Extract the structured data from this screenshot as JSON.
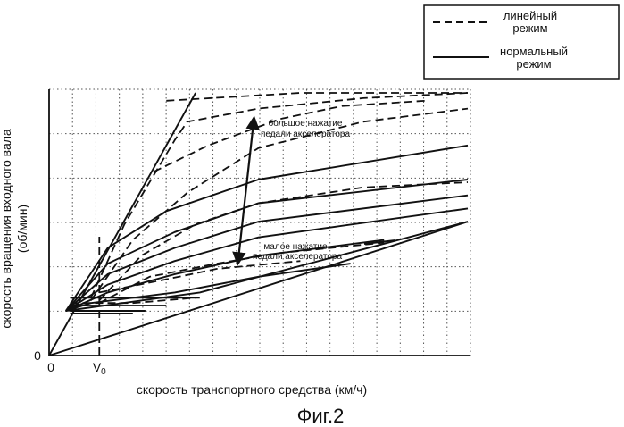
{
  "figure_caption": "Фиг.2",
  "chart_data": {
    "type": "line",
    "xlabel": "скорость транспортного средства (км/ч)",
    "ylabel_line1": "скорость вращения входного вала",
    "ylabel_line2": "(об/мин)",
    "x_origin_label": "0",
    "y_origin_label": "0",
    "v0_label": "V",
    "v0_subscript": "0",
    "v0": 0.12,
    "grid": "dotted",
    "legend_position": "top-right",
    "legend": [
      {
        "style": "dashed",
        "line1": "линейный",
        "line2": "режим"
      },
      {
        "style": "solid",
        "line1": "нормальный",
        "line2": "режим"
      }
    ],
    "annotations": {
      "high": {
        "line1": "большое нажатие",
        "line2": "педали акселератора"
      },
      "low": {
        "line1": "малое нажатие",
        "line2": "педали акселератора"
      }
    },
    "xlim": [
      0,
      1
    ],
    "ylim": [
      0,
      1
    ],
    "series": [
      {
        "style": "solid",
        "points": [
          [
            0,
            0
          ],
          [
            0.35,
            1.0
          ]
        ]
      },
      {
        "style": "solid",
        "points": [
          [
            0,
            0
          ],
          [
            1.0,
            0.51
          ]
        ]
      },
      {
        "style": "solid",
        "points": [
          [
            0.04,
            0.17
          ],
          [
            0.36,
            0.24
          ],
          [
            1.0,
            0.51
          ]
        ]
      },
      {
        "style": "solid",
        "points": [
          [
            0.04,
            0.17
          ],
          [
            0.14,
            0.41
          ],
          [
            0.28,
            0.55
          ],
          [
            0.5,
            0.67
          ],
          [
            1.0,
            0.8
          ]
        ]
      },
      {
        "style": "solid",
        "points": [
          [
            0.04,
            0.17
          ],
          [
            0.14,
            0.35
          ],
          [
            0.3,
            0.47
          ],
          [
            0.5,
            0.58
          ],
          [
            1.0,
            0.67
          ]
        ]
      },
      {
        "style": "solid",
        "points": [
          [
            0.04,
            0.17
          ],
          [
            0.14,
            0.31
          ],
          [
            0.3,
            0.41
          ],
          [
            0.5,
            0.51
          ],
          [
            1.0,
            0.61
          ]
        ]
      },
      {
        "style": "solid",
        "points": [
          [
            0.04,
            0.17
          ],
          [
            0.14,
            0.27
          ],
          [
            0.3,
            0.36
          ],
          [
            0.5,
            0.45
          ],
          [
            1.0,
            0.56
          ]
        ]
      },
      {
        "style": "solid",
        "points": [
          [
            0.04,
            0.17
          ],
          [
            0.14,
            0.24
          ],
          [
            0.3,
            0.31
          ],
          [
            0.5,
            0.38
          ],
          [
            0.8,
            0.44
          ]
        ]
      },
      {
        "style": "solid",
        "points": [
          [
            0.04,
            0.17
          ],
          [
            0.1,
            0.2
          ],
          [
            0.3,
            0.24
          ],
          [
            0.5,
            0.3
          ],
          [
            0.72,
            0.35
          ]
        ]
      },
      {
        "style": "solid",
        "points": [
          [
            0.05,
            0.22
          ],
          [
            0.36,
            0.22
          ]
        ]
      },
      {
        "style": "solid",
        "points": [
          [
            0.05,
            0.19
          ],
          [
            0.28,
            0.19
          ]
        ]
      },
      {
        "style": "solid",
        "points": [
          [
            0.05,
            0.17
          ],
          [
            0.23,
            0.17
          ]
        ]
      },
      {
        "style": "solid",
        "points": [
          [
            0.05,
            0.16
          ],
          [
            0.2,
            0.16
          ]
        ]
      },
      {
        "style": "dashed",
        "points": [
          [
            0.1,
            0.22
          ],
          [
            0.18,
            0.5
          ],
          [
            0.3,
            0.82
          ],
          [
            0.33,
            0.89
          ],
          [
            0.5,
            0.94
          ],
          [
            0.75,
            0.98
          ],
          [
            1.0,
            1.0
          ]
        ]
      },
      {
        "style": "dashed",
        "points": [
          [
            0.1,
            0.21
          ],
          [
            0.2,
            0.44
          ],
          [
            0.33,
            0.62
          ],
          [
            0.5,
            0.79
          ],
          [
            0.75,
            0.89
          ],
          [
            1.0,
            0.94
          ]
        ]
      },
      {
        "style": "dashed",
        "points": [
          [
            0.12,
            0.21
          ],
          [
            0.22,
            0.38
          ],
          [
            0.35,
            0.5
          ],
          [
            0.5,
            0.58
          ],
          [
            0.75,
            0.64
          ],
          [
            1.0,
            0.66
          ]
        ]
      },
      {
        "style": "dashed",
        "points": [
          [
            0.12,
            0.2
          ],
          [
            0.24,
            0.3
          ],
          [
            0.4,
            0.35
          ],
          [
            0.55,
            0.39
          ],
          [
            0.8,
            0.43
          ]
        ]
      },
      {
        "style": "dashed",
        "points": [
          [
            0.25,
            0.7
          ],
          [
            0.38,
            0.8
          ],
          [
            0.55,
            0.9
          ],
          [
            0.7,
            0.95
          ],
          [
            0.9,
            0.97
          ]
        ]
      },
      {
        "style": "dashed",
        "points": [
          [
            0.12,
            0.24
          ],
          [
            0.28,
            0.29
          ],
          [
            0.4,
            0.33
          ],
          [
            0.6,
            0.36
          ]
        ]
      },
      {
        "style": "dashed",
        "points": [
          [
            0.05,
            0.2
          ],
          [
            0.2,
            0.2
          ],
          [
            0.35,
            0.22
          ]
        ]
      },
      {
        "style": "dashed",
        "points": [
          [
            0.28,
            0.97
          ],
          [
            0.6,
            1.0
          ],
          [
            1.0,
            1.0
          ]
        ]
      }
    ]
  }
}
